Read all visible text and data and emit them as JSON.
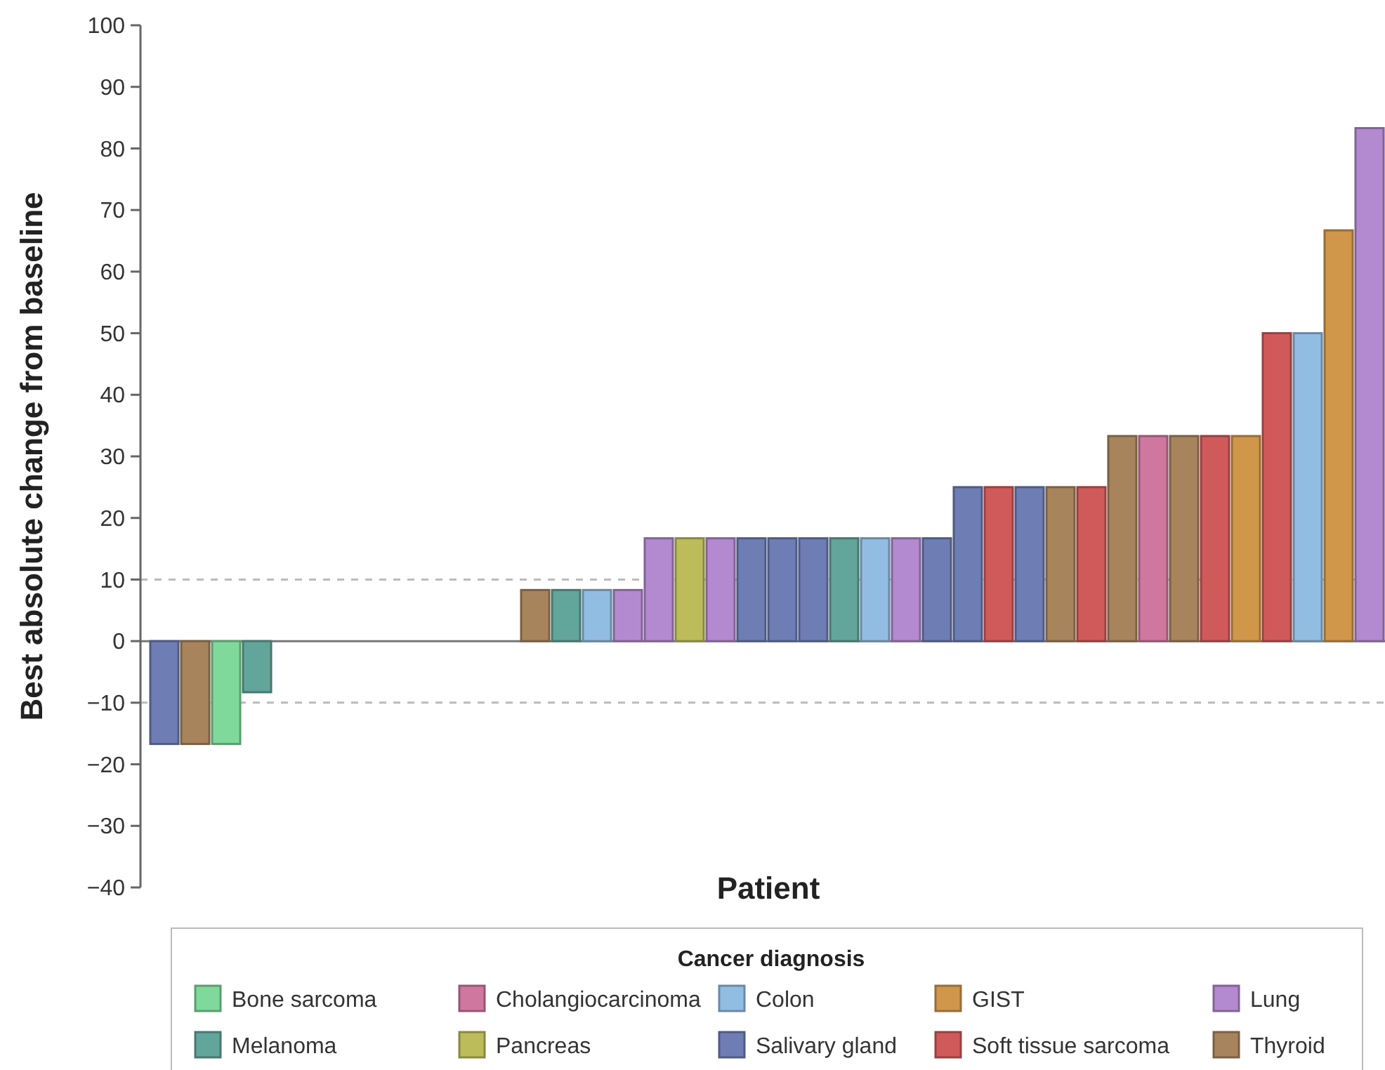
{
  "chart_data": {
    "type": "bar",
    "xlabel": "Patient",
    "ylabel": "Best absolute change from baseline",
    "legend_title": "Cancer diagnosis",
    "legend": "bottom",
    "categories": [
      null,
      null,
      null,
      null,
      null,
      null,
      null,
      null,
      null,
      null,
      null,
      null,
      null,
      null,
      null,
      null,
      null,
      null,
      null,
      null,
      null,
      null,
      null,
      null,
      null,
      null,
      null,
      null,
      null,
      null,
      null,
      null,
      null,
      null,
      null,
      null,
      null,
      null,
      null,
      null
    ],
    "ylim": [
      -40,
      100
    ],
    "yticks": [
      -40,
      -30,
      -20,
      -10,
      0,
      10,
      20,
      30,
      40,
      50,
      60,
      70,
      80,
      90,
      100
    ],
    "ref_lines": [
      {
        "axis": "y",
        "value": 10,
        "color": "#bbbbbb",
        "line_style": "dashed"
      },
      {
        "axis": "y",
        "value": -10,
        "color": "#bbbbbb",
        "line_style": "dashed"
      }
    ],
    "series": [
      {
        "name": "Bone sarcoma",
        "color": "#7fd99a",
        "values": [
          null,
          null,
          -16.7,
          null,
          null,
          null,
          null,
          null,
          null,
          null,
          null,
          null,
          null,
          null,
          null,
          null,
          null,
          null,
          null,
          null,
          null,
          null,
          null,
          null,
          null,
          null,
          null,
          null,
          null,
          null,
          null,
          null,
          null,
          null,
          null,
          null,
          null,
          null,
          null,
          null
        ]
      },
      {
        "name": "Cholangiocarcinoma",
        "color": "#d077a0",
        "values": [
          null,
          null,
          null,
          null,
          null,
          null,
          null,
          null,
          null,
          null,
          null,
          null,
          null,
          null,
          null,
          null,
          null,
          null,
          null,
          null,
          null,
          null,
          null,
          null,
          null,
          null,
          null,
          null,
          null,
          null,
          null,
          null,
          33.3,
          null,
          null,
          null,
          null,
          null,
          null,
          null
        ]
      },
      {
        "name": "Colon",
        "color": "#92bde3",
        "values": [
          null,
          null,
          null,
          null,
          null,
          null,
          null,
          null,
          null,
          null,
          null,
          null,
          null,
          null,
          8.3,
          null,
          null,
          null,
          null,
          null,
          null,
          null,
          null,
          16.7,
          null,
          null,
          null,
          null,
          null,
          null,
          null,
          null,
          null,
          null,
          null,
          null,
          null,
          50,
          null,
          null
        ]
      },
      {
        "name": "GIST",
        "color": "#d0964a",
        "values": [
          null,
          null,
          null,
          null,
          null,
          null,
          null,
          null,
          null,
          null,
          null,
          null,
          null,
          null,
          null,
          null,
          null,
          null,
          null,
          null,
          null,
          null,
          null,
          null,
          null,
          null,
          null,
          null,
          null,
          null,
          null,
          null,
          null,
          null,
          null,
          33.3,
          null,
          null,
          66.7,
          null
        ]
      },
      {
        "name": "Lung",
        "color": "#b389d0",
        "values": [
          null,
          null,
          null,
          null,
          null,
          null,
          null,
          null,
          null,
          null,
          null,
          null,
          null,
          null,
          null,
          8.3,
          16.7,
          null,
          16.7,
          null,
          null,
          null,
          null,
          null,
          16.7,
          null,
          null,
          null,
          null,
          null,
          null,
          null,
          null,
          null,
          null,
          null,
          null,
          null,
          null,
          83.3
        ]
      },
      {
        "name": "Melanoma",
        "color": "#62a59b",
        "values": [
          null,
          null,
          null,
          -8.3,
          null,
          null,
          null,
          null,
          null,
          null,
          null,
          null,
          null,
          8.3,
          null,
          null,
          null,
          null,
          null,
          null,
          null,
          null,
          16.7,
          null,
          null,
          null,
          null,
          null,
          null,
          null,
          null,
          null,
          null,
          null,
          null,
          null,
          null,
          null,
          null,
          null
        ]
      },
      {
        "name": "Pancreas",
        "color": "#bcbd5a",
        "values": [
          null,
          null,
          null,
          null,
          null,
          null,
          null,
          null,
          null,
          null,
          null,
          null,
          null,
          null,
          null,
          null,
          null,
          16.7,
          null,
          null,
          null,
          null,
          null,
          null,
          null,
          null,
          null,
          null,
          null,
          null,
          null,
          null,
          null,
          null,
          null,
          null,
          null,
          null,
          null,
          null
        ]
      },
      {
        "name": "Salivary gland",
        "color": "#6e7db4",
        "values": [
          -16.7,
          null,
          null,
          null,
          null,
          null,
          null,
          null,
          null,
          null,
          null,
          null,
          null,
          null,
          null,
          null,
          null,
          null,
          null,
          16.7,
          16.7,
          16.7,
          null,
          null,
          null,
          16.7,
          25,
          null,
          25,
          null,
          null,
          null,
          null,
          null,
          null,
          null,
          null,
          null,
          null,
          null
        ]
      },
      {
        "name": "Soft tissue sarcoma",
        "color": "#d05a5a",
        "values": [
          null,
          null,
          null,
          null,
          null,
          null,
          null,
          null,
          null,
          null,
          null,
          null,
          null,
          null,
          null,
          null,
          null,
          null,
          null,
          null,
          null,
          null,
          null,
          null,
          null,
          null,
          null,
          25,
          null,
          null,
          25,
          null,
          null,
          null,
          33.3,
          null,
          50,
          null,
          null,
          null
        ]
      },
      {
        "name": "Thyroid",
        "color": "#a8845c",
        "values": [
          null,
          -16.7,
          null,
          null,
          null,
          null,
          null,
          null,
          null,
          null,
          null,
          null,
          8.3,
          null,
          null,
          null,
          null,
          null,
          null,
          null,
          null,
          null,
          null,
          null,
          null,
          null,
          null,
          null,
          null,
          25,
          null,
          33.3,
          null,
          33.3,
          null,
          null,
          null,
          null,
          null,
          null
        ]
      },
      {
        "color": "#999999",
        "values": [
          null,
          null,
          null,
          null,
          0,
          0,
          0,
          0,
          0,
          0,
          0,
          0,
          null,
          null,
          null,
          null,
          null,
          null,
          null,
          null,
          null,
          null,
          null,
          null,
          null,
          null,
          null,
          null,
          null,
          null,
          null,
          null,
          null,
          null,
          null,
          null,
          null,
          null,
          null,
          null
        ]
      }
    ]
  }
}
